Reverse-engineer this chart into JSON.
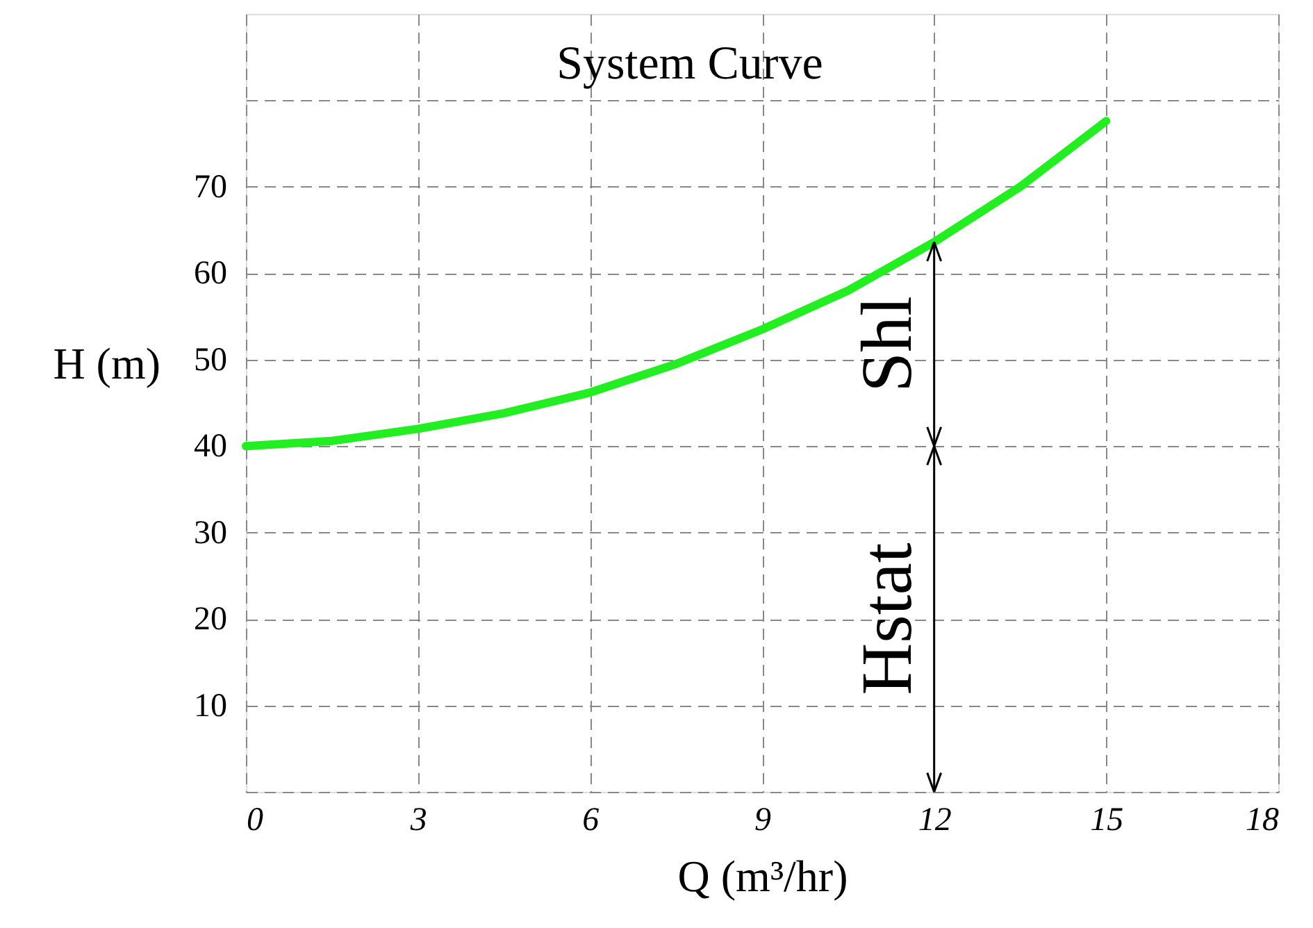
{
  "chart_data": {
    "type": "line",
    "title": "System Curve",
    "xlabel": "Q (m³/hr)",
    "ylabel": "H (m)",
    "series": [
      {
        "color": "#22ee22",
        "x": [
          0,
          1.5,
          3,
          4.5,
          6,
          7.5,
          9,
          10.5,
          12,
          13.5,
          15
        ],
        "values": [
          40,
          40.6,
          42,
          43.8,
          46.2,
          49.5,
          53.5,
          58,
          63.6,
          70,
          77.6
        ]
      }
    ],
    "xlim": [
      0,
      18
    ],
    "xticks": [
      0,
      3,
      6,
      9,
      12,
      15,
      18
    ],
    "ylim": [
      0,
      90
    ],
    "yticks": [
      {
        "value": 0,
        "label": null
      },
      10,
      20,
      30,
      40,
      50,
      60,
      70,
      {
        "value": 80,
        "label": null
      }
    ],
    "grid": true,
    "line_style": "solid",
    "marker": "none",
    "annotations": [
      "Hstat",
      "Shl"
    ]
  }
}
